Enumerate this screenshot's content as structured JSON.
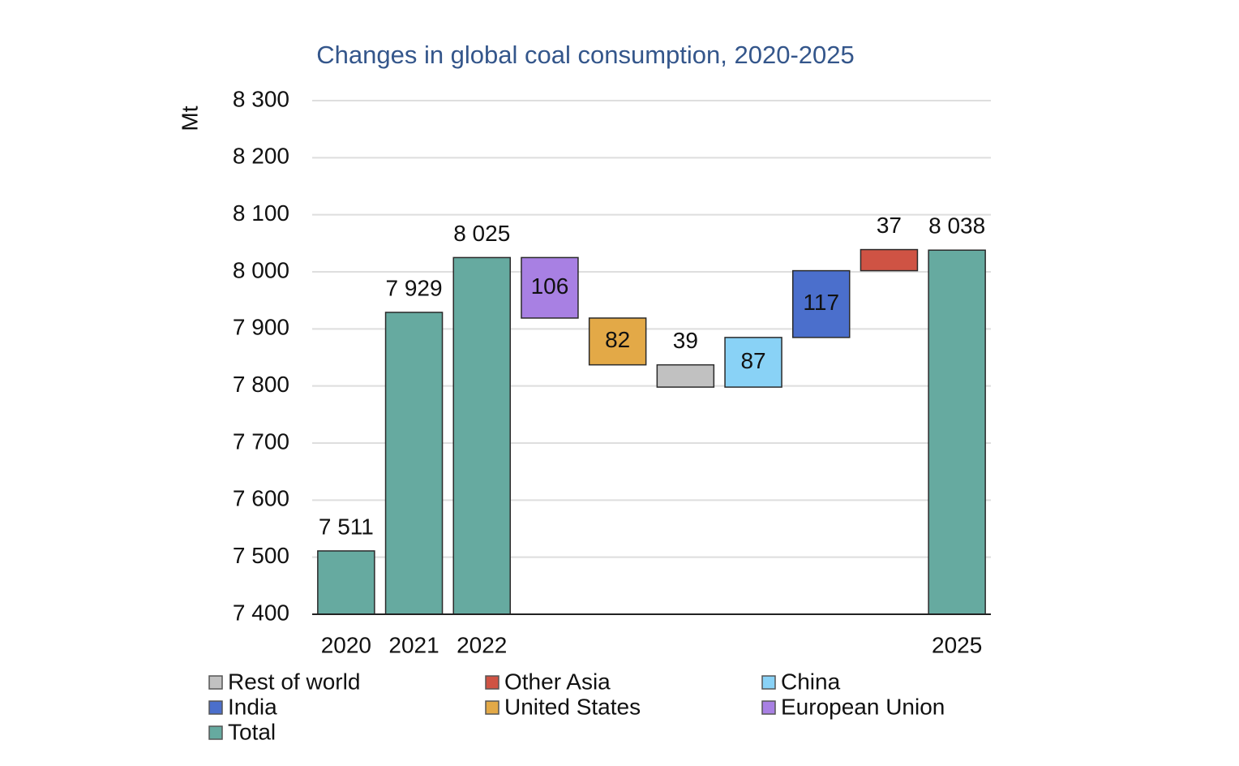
{
  "chart_data": {
    "type": "waterfall",
    "title": "Changes in global coal consumption, 2020-2025",
    "y_label": "Mt",
    "categories": [
      "2020",
      "2021",
      "2022",
      null,
      null,
      null,
      null,
      null,
      null,
      "2025"
    ],
    "series": [
      {
        "name": "Rest of world",
        "color": "#c1c1c1",
        "values": [
          null,
          null,
          null,
          null,
          null,
          -39,
          null,
          null,
          null,
          null
        ],
        "value_labels": [
          null,
          null,
          null,
          null,
          null,
          "39",
          null,
          null,
          null,
          null
        ]
      },
      {
        "name": "Other Asia",
        "color": "#cf5344",
        "values": [
          null,
          null,
          null,
          null,
          null,
          null,
          null,
          null,
          37,
          null
        ],
        "value_labels": [
          null,
          null,
          null,
          null,
          null,
          null,
          null,
          null,
          "37",
          null
        ]
      },
      {
        "name": "China",
        "color": "#89d2f6",
        "values": [
          null,
          null,
          null,
          null,
          null,
          null,
          87,
          null,
          null,
          null
        ],
        "value_labels": [
          null,
          null,
          null,
          null,
          null,
          null,
          "87",
          null,
          null,
          null
        ]
      },
      {
        "name": "India",
        "color": "#4b6fcc",
        "values": [
          null,
          null,
          null,
          null,
          null,
          null,
          null,
          117,
          null,
          null
        ],
        "value_labels": [
          null,
          null,
          null,
          null,
          null,
          null,
          null,
          "117",
          null,
          null
        ]
      },
      {
        "name": "United States",
        "color": "#e3a947",
        "values": [
          null,
          null,
          null,
          null,
          -82,
          null,
          null,
          null,
          null,
          null
        ],
        "value_labels": [
          null,
          null,
          null,
          null,
          "82",
          null,
          null,
          null,
          null,
          null
        ]
      },
      {
        "name": "European Union",
        "color": "#a880e3",
        "values": [
          null,
          null,
          null,
          -106,
          null,
          null,
          null,
          null,
          null,
          null
        ],
        "value_labels": [
          null,
          null,
          null,
          "106",
          null,
          null,
          null,
          null,
          null,
          null
        ]
      },
      {
        "name": "Total",
        "color": "#66aaa0",
        "values": [
          7511,
          7929,
          8025,
          null,
          null,
          null,
          null,
          null,
          null,
          8038
        ],
        "value_labels": [
          "7 511",
          "7 929",
          "8 025",
          null,
          null,
          null,
          null,
          null,
          null,
          "8 038"
        ]
      }
    ],
    "ylim": [
      7400,
      8300
    ],
    "yticks": [
      {
        "value": 7400,
        "label": "7 400"
      },
      {
        "value": 7500,
        "label": "7 500"
      },
      {
        "value": 7600,
        "label": "7 600"
      },
      {
        "value": 7700,
        "label": "7 700"
      },
      {
        "value": 7800,
        "label": "7 800"
      },
      {
        "value": 7900,
        "label": "7 900"
      },
      {
        "value": 8000,
        "label": "8 000"
      },
      {
        "value": 8100,
        "label": "8 100"
      },
      {
        "value": 8200,
        "label": "8 200"
      },
      {
        "value": 8300,
        "label": "8 300"
      }
    ],
    "grid": true,
    "legend": "bottom"
  }
}
